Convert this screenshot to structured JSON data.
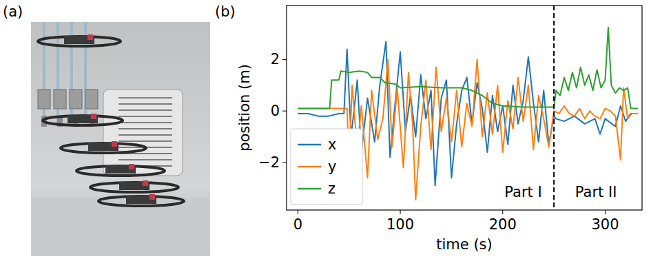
{
  "chart_data": {
    "type": "line",
    "panel_labels": [
      "(a)",
      "(b)"
    ],
    "x_label": "time (s)",
    "y_label": "position (m)",
    "xlim": [
      -11,
      336
    ],
    "ylim": [
      -3.85,
      4.1
    ],
    "xticks": [
      0,
      100,
      200,
      300
    ],
    "yticks": [
      {
        "value": -2,
        "label": "−2"
      },
      0,
      2
    ],
    "grid": false,
    "legend": "lower left",
    "vlines": [
      {
        "x": 250,
        "line_style": "dashed",
        "color": "#000000"
      }
    ],
    "annotations": [
      {
        "text": "Part I",
        "x": 220,
        "y": -3.15
      },
      {
        "text": "Part II",
        "x": 291,
        "y": -3.15
      }
    ],
    "series": [
      {
        "name": "x",
        "color": "#1f77b4",
        "x": [
          0,
          10,
          20,
          30,
          40,
          45,
          48,
          52,
          58,
          62,
          68,
          75,
          80,
          86,
          90,
          95,
          100,
          105,
          110,
          115,
          120,
          125,
          130,
          134,
          140,
          145,
          150,
          155,
          160,
          165,
          170,
          175,
          180,
          185,
          190,
          195,
          200,
          205,
          210,
          215,
          220,
          225,
          230,
          235,
          240,
          245,
          250,
          252,
          260,
          270,
          280,
          290,
          295,
          300,
          310,
          315,
          320,
          325,
          332
        ],
        "values": [
          -0.1,
          -0.1,
          -0.2,
          -0.2,
          -0.1,
          -0.1,
          2.4,
          -1.0,
          1.2,
          -1.6,
          0.5,
          -1.2,
          1.0,
          2.7,
          -1.8,
          0.3,
          2.3,
          -0.8,
          0.6,
          -1.0,
          1.4,
          -0.3,
          0.8,
          -2.9,
          0.5,
          1.2,
          -2.6,
          -0.5,
          0.8,
          1.3,
          -0.5,
          1.1,
          0.1,
          -1.6,
          0.6,
          -0.8,
          0.2,
          -1.3,
          1.0,
          -0.5,
          0.4,
          2.1,
          0.3,
          -1.2,
          0.8,
          -1.3,
          -0.2,
          -0.3,
          -0.4,
          -0.2,
          -0.5,
          -0.3,
          -0.9,
          -0.3,
          -0.6,
          0.2,
          -0.4,
          -0.1,
          -0.1
        ]
      },
      {
        "name": "y",
        "color": "#ff7f0e",
        "x": [
          0,
          10,
          20,
          30,
          40,
          48,
          50,
          53,
          58,
          62,
          68,
          72,
          78,
          83,
          88,
          92,
          97,
          103,
          108,
          112,
          115,
          120,
          125,
          130,
          135,
          140,
          145,
          150,
          155,
          160,
          165,
          170,
          175,
          180,
          185,
          190,
          195,
          200,
          205,
          210,
          215,
          220,
          225,
          230,
          235,
          240,
          245,
          250,
          255,
          260,
          265,
          270,
          275,
          280,
          285,
          290,
          295,
          300,
          305,
          310,
          315,
          318,
          322,
          326,
          332
        ],
        "values": [
          0.1,
          0.1,
          0.1,
          0.1,
          0.1,
          0.1,
          -2.0,
          1.0,
          -1.5,
          0.2,
          -2.6,
          0.8,
          -1.1,
          -0.3,
          2.0,
          -1.4,
          0.9,
          -2.2,
          1.5,
          -0.5,
          -3.45,
          -0.6,
          1.2,
          -1.5,
          1.7,
          -0.8,
          0.5,
          -1.2,
          0.8,
          -1.4,
          0.3,
          -0.6,
          2.0,
          -1.0,
          0.7,
          -0.9,
          1.0,
          -1.6,
          0.4,
          -0.7,
          1.3,
          -0.4,
          1.0,
          -1.5,
          0.6,
          -0.3,
          -1.4,
          0.0,
          -0.1,
          0.2,
          -0.1,
          -0.2,
          0.1,
          -0.3,
          0.0,
          -0.2,
          -0.3,
          0.1,
          0.0,
          -0.2,
          -1.9,
          0.9,
          -0.3,
          -0.1,
          -0.1
        ]
      },
      {
        "name": "z",
        "color": "#2ca02c",
        "x": [
          0,
          10,
          20,
          31,
          33,
          40,
          42,
          50,
          60,
          68,
          72,
          80,
          85,
          95,
          100,
          120,
          140,
          160,
          170,
          180,
          190,
          200,
          220,
          250,
          252,
          256,
          260,
          264,
          268,
          272,
          276,
          280,
          284,
          288,
          292,
          296,
          300,
          303,
          306,
          310,
          314,
          318,
          322,
          325,
          332
        ],
        "values": [
          0.1,
          0.1,
          0.1,
          0.1,
          1.2,
          1.2,
          1.55,
          1.5,
          1.55,
          1.5,
          1.3,
          1.3,
          1.1,
          1.05,
          0.9,
          0.95,
          0.9,
          0.9,
          0.8,
          0.6,
          0.3,
          0.2,
          0.15,
          0.15,
          0.8,
          0.6,
          1.3,
          0.8,
          1.5,
          0.9,
          1.7,
          1.0,
          1.4,
          0.8,
          1.6,
          0.9,
          1.2,
          3.25,
          1.0,
          0.7,
          0.9,
          0.8,
          0.9,
          0.1,
          0.1
        ]
      }
    ]
  }
}
